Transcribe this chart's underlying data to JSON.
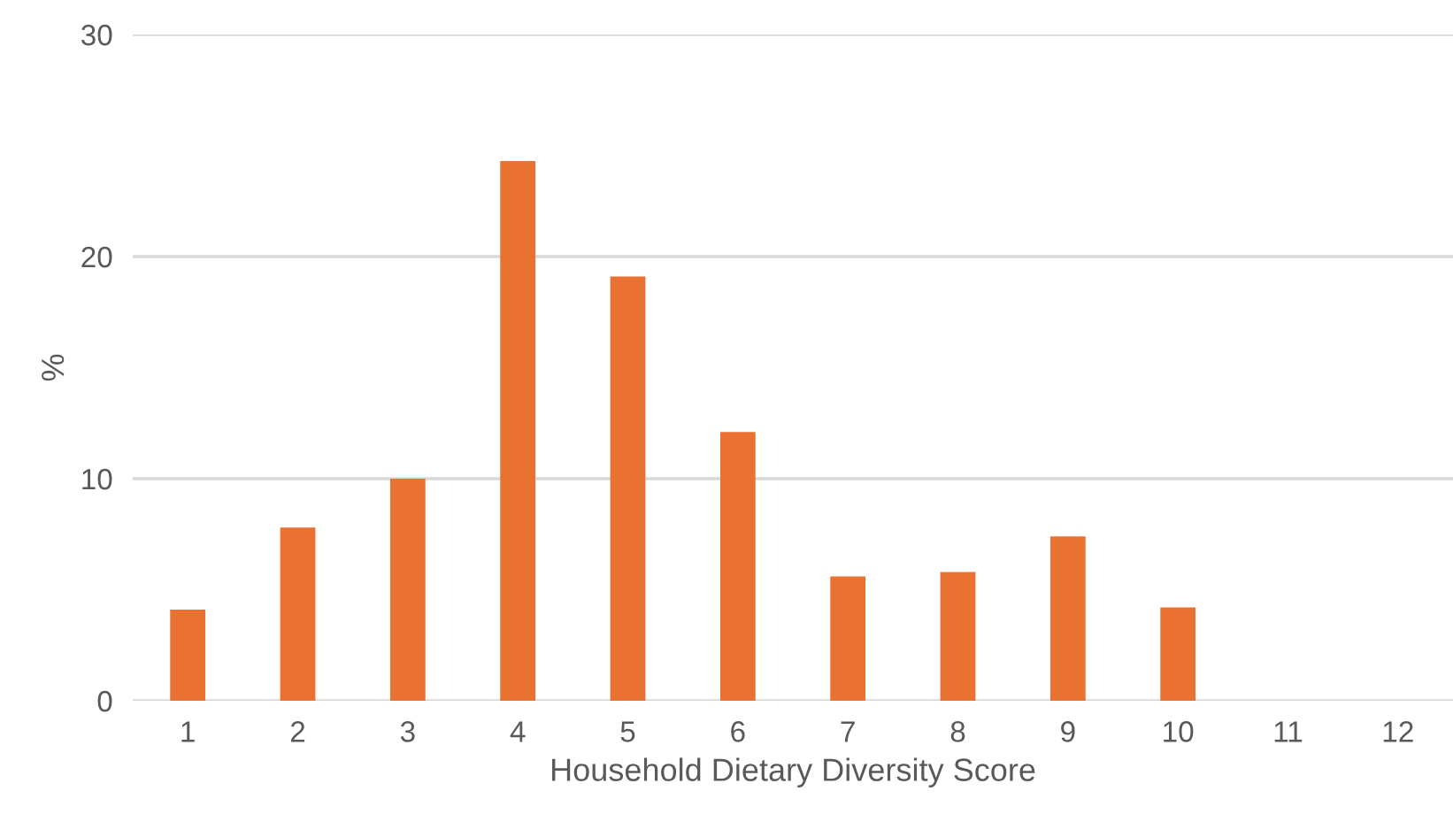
{
  "chart_data": {
    "type": "bar",
    "xlabel": "Household Dietary Diversity Score",
    "ylabel": "%",
    "categories": [
      "1",
      "2",
      "3",
      "4",
      "5",
      "6",
      "7",
      "8",
      "9",
      "10",
      "11",
      "12"
    ],
    "values": [
      4.1,
      7.8,
      10.0,
      24.3,
      19.1,
      12.1,
      5.6,
      5.8,
      7.4,
      4.2,
      0,
      0
    ],
    "color": "#e97132",
    "ylim": [
      0,
      30
    ],
    "yticks": [
      0,
      10,
      20,
      30
    ],
    "grid": "y",
    "legend": false
  }
}
